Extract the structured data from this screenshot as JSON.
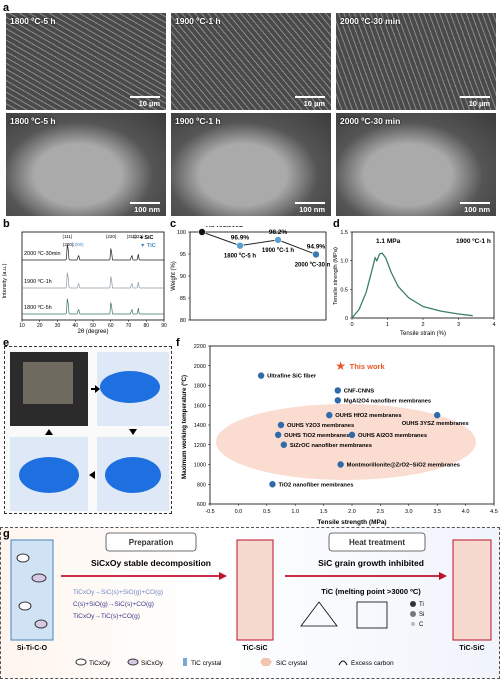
{
  "panels": {
    "a": "a",
    "b": "b",
    "c": "c",
    "d": "d",
    "e": "e",
    "f": "f",
    "g": "g"
  },
  "sem": {
    "top": [
      {
        "label": "1800 ºC-5 h",
        "scale": "10 µm"
      },
      {
        "label": "1900 ºC-1 h",
        "scale": "10 µm"
      },
      {
        "label": "2000 ºC-30 min",
        "scale": "10 µm"
      }
    ],
    "bottom": [
      {
        "label": "1800 ºC-5 h",
        "scale": "100 nm"
      },
      {
        "label": "1900 ºC-1 h",
        "scale": "100 nm"
      },
      {
        "label": "2000 ºC-30 min",
        "scale": "100 nm"
      }
    ]
  },
  "chart_b": {
    "type": "line",
    "xlabel": "2θ (degree)",
    "ylabel": "Intensity (a.u.)",
    "xlim": [
      10,
      90
    ],
    "xticks": [
      "10",
      "20",
      "30",
      "40",
      "50",
      "60",
      "70",
      "80",
      "90"
    ],
    "legend": [
      "SiC",
      "TiC"
    ],
    "series": [
      {
        "name": "2000 ºC-30min",
        "color": "#222222"
      },
      {
        "name": "1900 ºC-1h",
        "color": "#8a9aa8"
      },
      {
        "name": "1800 ºC-5h",
        "color": "#3c7a5a"
      }
    ],
    "peak_positions": [
      35.6,
      36.0,
      41.8,
      60.2,
      71.8,
      75.5
    ],
    "peak_labels": [
      "(111)",
      "(200)",
      "(200)",
      "(220)",
      "(311)",
      "(222)"
    ]
  },
  "chart_c": {
    "type": "scatter",
    "ylabel": "Weight (%)",
    "ylim": [
      80,
      100
    ],
    "yticks": [
      "80",
      "85",
      "90",
      "95",
      "100"
    ],
    "points": [
      {
        "x": 0,
        "y": 100,
        "label": "As-recieved"
      },
      {
        "x": 1,
        "y": 96.9,
        "label": "96.9%",
        "sub": "1800 ºC-5 h"
      },
      {
        "x": 2,
        "y": 98.2,
        "label": "98.2%",
        "sub": "1900 ºC-1 h"
      },
      {
        "x": 3,
        "y": 94.9,
        "label": "94.9%",
        "sub": "2000 ºC-30 min"
      }
    ]
  },
  "chart_d": {
    "type": "line",
    "xlabel": "Tensile strain (%)",
    "ylabel": "Tensile strength (MPa)",
    "xlim": [
      0,
      4
    ],
    "ylim": [
      0,
      1.5
    ],
    "xticks": [
      "0",
      "1",
      "2",
      "3",
      "4"
    ],
    "yticks": [
      "0",
      "0.5",
      "1.0",
      "1.5"
    ],
    "annotation": "1.1 MPa",
    "condition": "1900 ºC-1 h",
    "x": [
      0,
      0.2,
      0.4,
      0.55,
      0.65,
      0.7,
      0.78,
      0.85,
      0.95,
      1.1,
      1.3,
      1.6,
      2.0,
      2.5,
      3.0,
      3.4
    ],
    "y": [
      0,
      0.15,
      0.45,
      0.8,
      1.05,
      1.0,
      1.12,
      1.13,
      1.05,
      0.8,
      0.55,
      0.35,
      0.2,
      0.12,
      0.07,
      0.04
    ]
  },
  "chart_f": {
    "type": "scatter",
    "xlabel": "Tensile strength (MPa)",
    "ylabel": "Maximum working temperature (ºC)",
    "xlim": [
      -0.5,
      4.5
    ],
    "ylim": [
      600,
      2200
    ],
    "xticks": [
      "-0.5",
      "0.0",
      "0.5",
      "1.0",
      "1.5",
      "2.0",
      "2.5",
      "3.0",
      "3.5",
      "4.0",
      "4.5"
    ],
    "yticks": [
      "600",
      "800",
      "1000",
      "1200",
      "1400",
      "1600",
      "1800",
      "2000",
      "2200"
    ],
    "points": [
      {
        "x": 1.8,
        "y": 2000,
        "label": "This work",
        "star": true
      },
      {
        "x": 0.4,
        "y": 1900,
        "label": "Ultrafine SiC fiber"
      },
      {
        "x": 1.75,
        "y": 1750,
        "label": "CNF-CNNS"
      },
      {
        "x": 1.75,
        "y": 1650,
        "label": "MgAl2O4 nanofiber membranes"
      },
      {
        "x": 1.6,
        "y": 1500,
        "label": "OUHS HfO2 membranes"
      },
      {
        "x": 0.75,
        "y": 1400,
        "label": "OUHS Y2O3 membranes"
      },
      {
        "x": 3.5,
        "y": 1500,
        "label": "OUHS 3YSZ membranes"
      },
      {
        "x": 0.7,
        "y": 1300,
        "label": "OUHS TiO2 membranes"
      },
      {
        "x": 0.8,
        "y": 1200,
        "label": "SiZrOC nanofiber membranes"
      },
      {
        "x": 2.0,
        "y": 1300,
        "label": "OUHS Al2O3 membranes"
      },
      {
        "x": 1.8,
        "y": 1000,
        "label": "Montmorillonite@ZrO2−SiO2 membranes"
      },
      {
        "x": 0.6,
        "y": 800,
        "label": "TiO2 nanofiber membranes"
      }
    ]
  },
  "panel_g": {
    "prep_title": "Preparation",
    "prep_sub": "SiCxOy stable decomposition",
    "reactions": [
      "TiCxOy→SiC(s)+SiO(g)+CO(g)",
      "C(s)+SiO(g)→SiC(s)+CO(g)",
      "TiCxOy→TiC(s)+CO(g)"
    ],
    "heat_title": "Heat treatment",
    "heat_sub": "SiC grain growth inhibited",
    "tic_note": "TiC (melting point >3000 ºC)",
    "start_label": "Si-Ti-C-O",
    "mid_label": "TiC-SiC",
    "end_label": "TiC-SiC",
    "legend": [
      "TiCxOy",
      "SiCxOy",
      "TiC crystal",
      "SiC crystal",
      "Excess carbon"
    ],
    "atoms": [
      "Ti",
      "Si",
      "C"
    ]
  }
}
